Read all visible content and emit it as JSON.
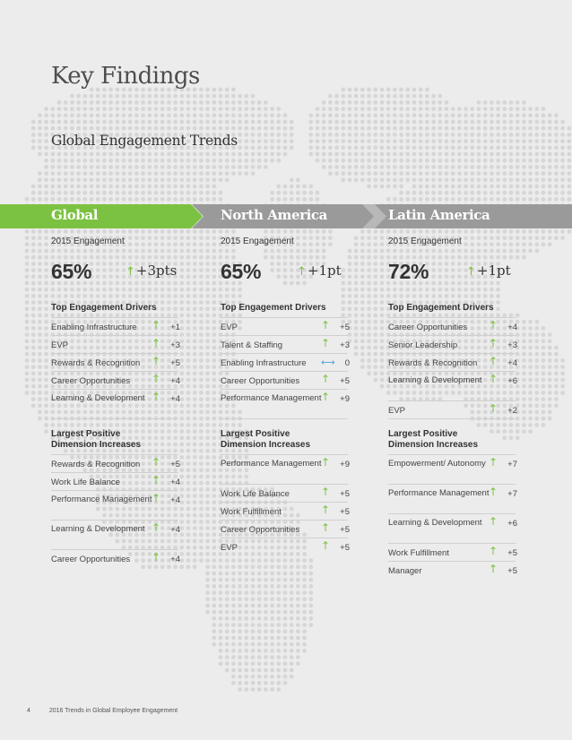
{
  "page": {
    "title": "Key Findings",
    "subtitle": "Global Engagement Trends",
    "footer_page": "4",
    "footer_text": "2016 Trends in Global Employee Engagement"
  },
  "colors": {
    "global_banner": "#7cc242",
    "region_banner": "#9a9a9a",
    "arrow_up": "#7cc242",
    "arrow_flat": "#4fa3d8",
    "map_dots": "#d6d6d6"
  },
  "icons": {
    "up": "↑",
    "flat": "⟷"
  },
  "columns": [
    {
      "name": "Global",
      "engagement_label": "2015 Engagement",
      "engagement_pct": "65%",
      "engagement_change": "+3pts",
      "drivers_heading": "Top Engagement Drivers",
      "drivers": [
        {
          "label": "Enabling Infrastructure",
          "icon": "up",
          "value": "+1"
        },
        {
          "label": "EVP",
          "icon": "up",
          "value": "+3"
        },
        {
          "label": "Rewards & Recognition",
          "icon": "up",
          "value": "+5"
        },
        {
          "label": "Career Opportunities",
          "icon": "up",
          "value": "+4"
        },
        {
          "label": "Learning & Development",
          "icon": "up",
          "value": "+4"
        }
      ],
      "increases_heading": "Largest Positive Dimension Increases",
      "increases": [
        {
          "label": "Rewards & Recognition",
          "icon": "up",
          "value": "+5"
        },
        {
          "label": "Work Life Balance",
          "icon": "up",
          "value": "+4"
        },
        {
          "label": "Performance Management",
          "icon": "up",
          "value": "+4"
        },
        {
          "label": "Learning & Development",
          "icon": "up",
          "value": "+4"
        },
        {
          "label": "Career Opportunities",
          "icon": "up",
          "value": "+4"
        }
      ]
    },
    {
      "name": "North America",
      "engagement_label": "2015 Engagement",
      "engagement_pct": "65%",
      "engagement_change": "+1pt",
      "drivers_heading": "Top Engagement Drivers",
      "drivers": [
        {
          "label": "EVP",
          "icon": "up",
          "value": "+5"
        },
        {
          "label": "Talent & Staffing",
          "icon": "up",
          "value": "+3"
        },
        {
          "label": "Enabling Infrastructure",
          "icon": "flat",
          "value": "0"
        },
        {
          "label": "Career Opportunities",
          "icon": "up",
          "value": "+5"
        },
        {
          "label": "Performance Management",
          "icon": "up",
          "value": "+9"
        }
      ],
      "increases_heading": "Largest Positive Dimension Increases",
      "increases": [
        {
          "label": "Performance Management",
          "icon": "up",
          "value": "+9"
        },
        {
          "label": "Work Life Balance",
          "icon": "up",
          "value": "+5"
        },
        {
          "label": "Work Fulfillment",
          "icon": "up",
          "value": "+5"
        },
        {
          "label": "Career Opportunities",
          "icon": "up",
          "value": "+5"
        },
        {
          "label": "EVP",
          "icon": "up",
          "value": "+5"
        }
      ]
    },
    {
      "name": "Latin America",
      "engagement_label": "2015 Engagement",
      "engagement_pct": "72%",
      "engagement_change": "+1pt",
      "drivers_heading": "Top Engagement Drivers",
      "drivers": [
        {
          "label": "Career Opportunities",
          "icon": "up",
          "value": "+4"
        },
        {
          "label": "Senior Leadership",
          "icon": "up",
          "value": "+3"
        },
        {
          "label": "Rewards & Recognition",
          "icon": "up",
          "value": "+4"
        },
        {
          "label": "Learning & Development",
          "icon": "up",
          "value": "+6"
        },
        {
          "label": "EVP",
          "icon": "up",
          "value": "+2"
        }
      ],
      "increases_heading": "Largest Positive Dimension Increases",
      "increases": [
        {
          "label": "Empowerment/ Autonomy",
          "icon": "up",
          "value": "+7"
        },
        {
          "label": "Performance Management",
          "icon": "up",
          "value": "+7"
        },
        {
          "label": "Learning & Development",
          "icon": "up",
          "value": "+6"
        },
        {
          "label": "Work Fulfillment",
          "icon": "up",
          "value": "+5"
        },
        {
          "label": "Manager",
          "icon": "up",
          "value": "+5"
        }
      ]
    }
  ]
}
